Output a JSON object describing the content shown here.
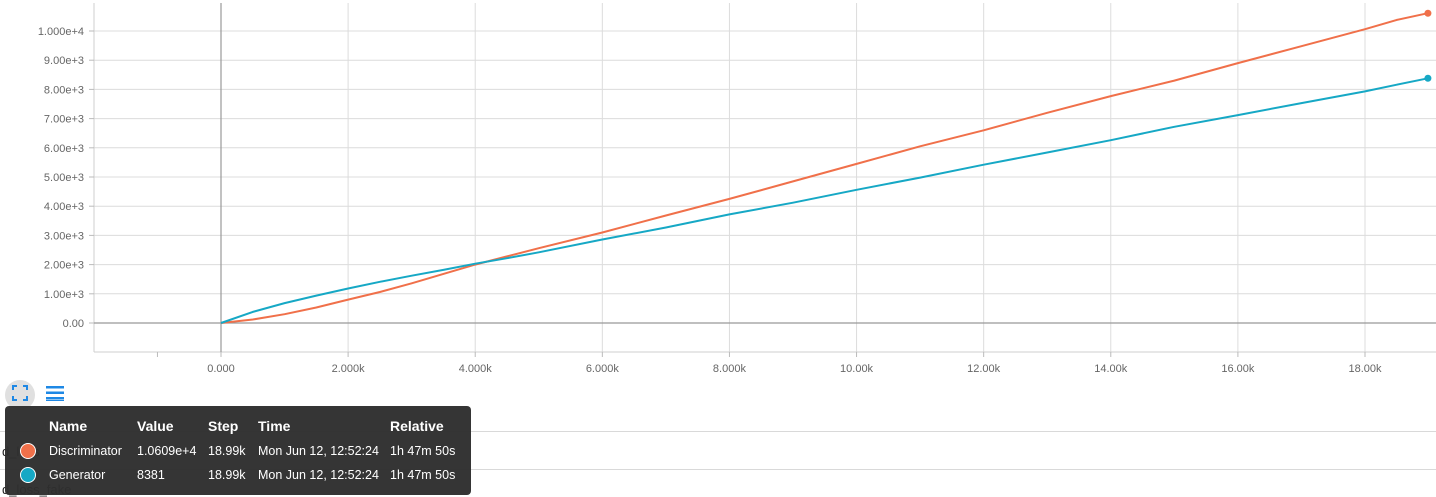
{
  "chart_data": {
    "type": "line",
    "x_ticks": [
      "0.000",
      "2.000k",
      "4.000k",
      "6.000k",
      "8.000k",
      "10.00k",
      "12.00k",
      "14.00k",
      "16.00k",
      "18.00k"
    ],
    "y_ticks": [
      "0.00",
      "1.00e+3",
      "2.00e+3",
      "3.00e+3",
      "4.00e+3",
      "5.00e+3",
      "6.00e+3",
      "7.00e+3",
      "8.00e+3",
      "9.00e+3",
      "1.000e+4"
    ],
    "xlim": [
      -2000,
      19000
    ],
    "ylim": [
      -1000,
      11000
    ],
    "grid": true,
    "series": [
      {
        "name": "Discriminator",
        "color": "#f0704a",
        "x": [
          0,
          500,
          1000,
          1500,
          2000,
          2500,
          3000,
          3500,
          4000,
          4500,
          5000,
          6000,
          7000,
          8000,
          9000,
          10000,
          11000,
          12000,
          13000,
          14000,
          15000,
          16000,
          17000,
          18000,
          18500,
          18990
        ],
        "y": [
          0,
          120,
          300,
          530,
          800,
          1060,
          1360,
          1680,
          2000,
          2280,
          2560,
          3100,
          3680,
          4250,
          4850,
          5450,
          6050,
          6600,
          7200,
          7770,
          8300,
          8900,
          9480,
          10060,
          10380,
          10609
        ]
      },
      {
        "name": "Generator",
        "color": "#16a8c5",
        "x": [
          0,
          500,
          1000,
          1500,
          2000,
          2500,
          3000,
          3500,
          4000,
          4500,
          5000,
          6000,
          7000,
          8000,
          9000,
          10000,
          11000,
          12000,
          13000,
          14000,
          15000,
          16000,
          17000,
          18000,
          18500,
          18990
        ],
        "y": [
          0,
          380,
          680,
          940,
          1180,
          1410,
          1620,
          1820,
          2030,
          2220,
          2420,
          2860,
          3270,
          3720,
          4120,
          4560,
          4980,
          5420,
          5840,
          6260,
          6720,
          7120,
          7530,
          7930,
          8160,
          8381
        ]
      }
    ]
  },
  "toolbar": {
    "fullscreen_icon": "fullscreen-icon",
    "list_icon": "list-icon"
  },
  "tooltip": {
    "headers": {
      "name": "Name",
      "value": "Value",
      "step": "Step",
      "time": "Time",
      "relative": "Relative"
    },
    "rows": [
      {
        "name": "Discriminator",
        "value": "1.0609e+4",
        "step": "18.99k",
        "time": "Mon Jun 12, 12:52:24",
        "relative": "1h 47m 50s",
        "color": "#f0704a"
      },
      {
        "name": "Generator",
        "value": "8381",
        "step": "18.99k",
        "time": "Mon Jun 12, 12:52:24",
        "relative": "1h 47m 50s",
        "color": "#16a8c5"
      }
    ]
  },
  "below": {
    "label1": "d_loss",
    "label2": "d_loss_fake"
  }
}
